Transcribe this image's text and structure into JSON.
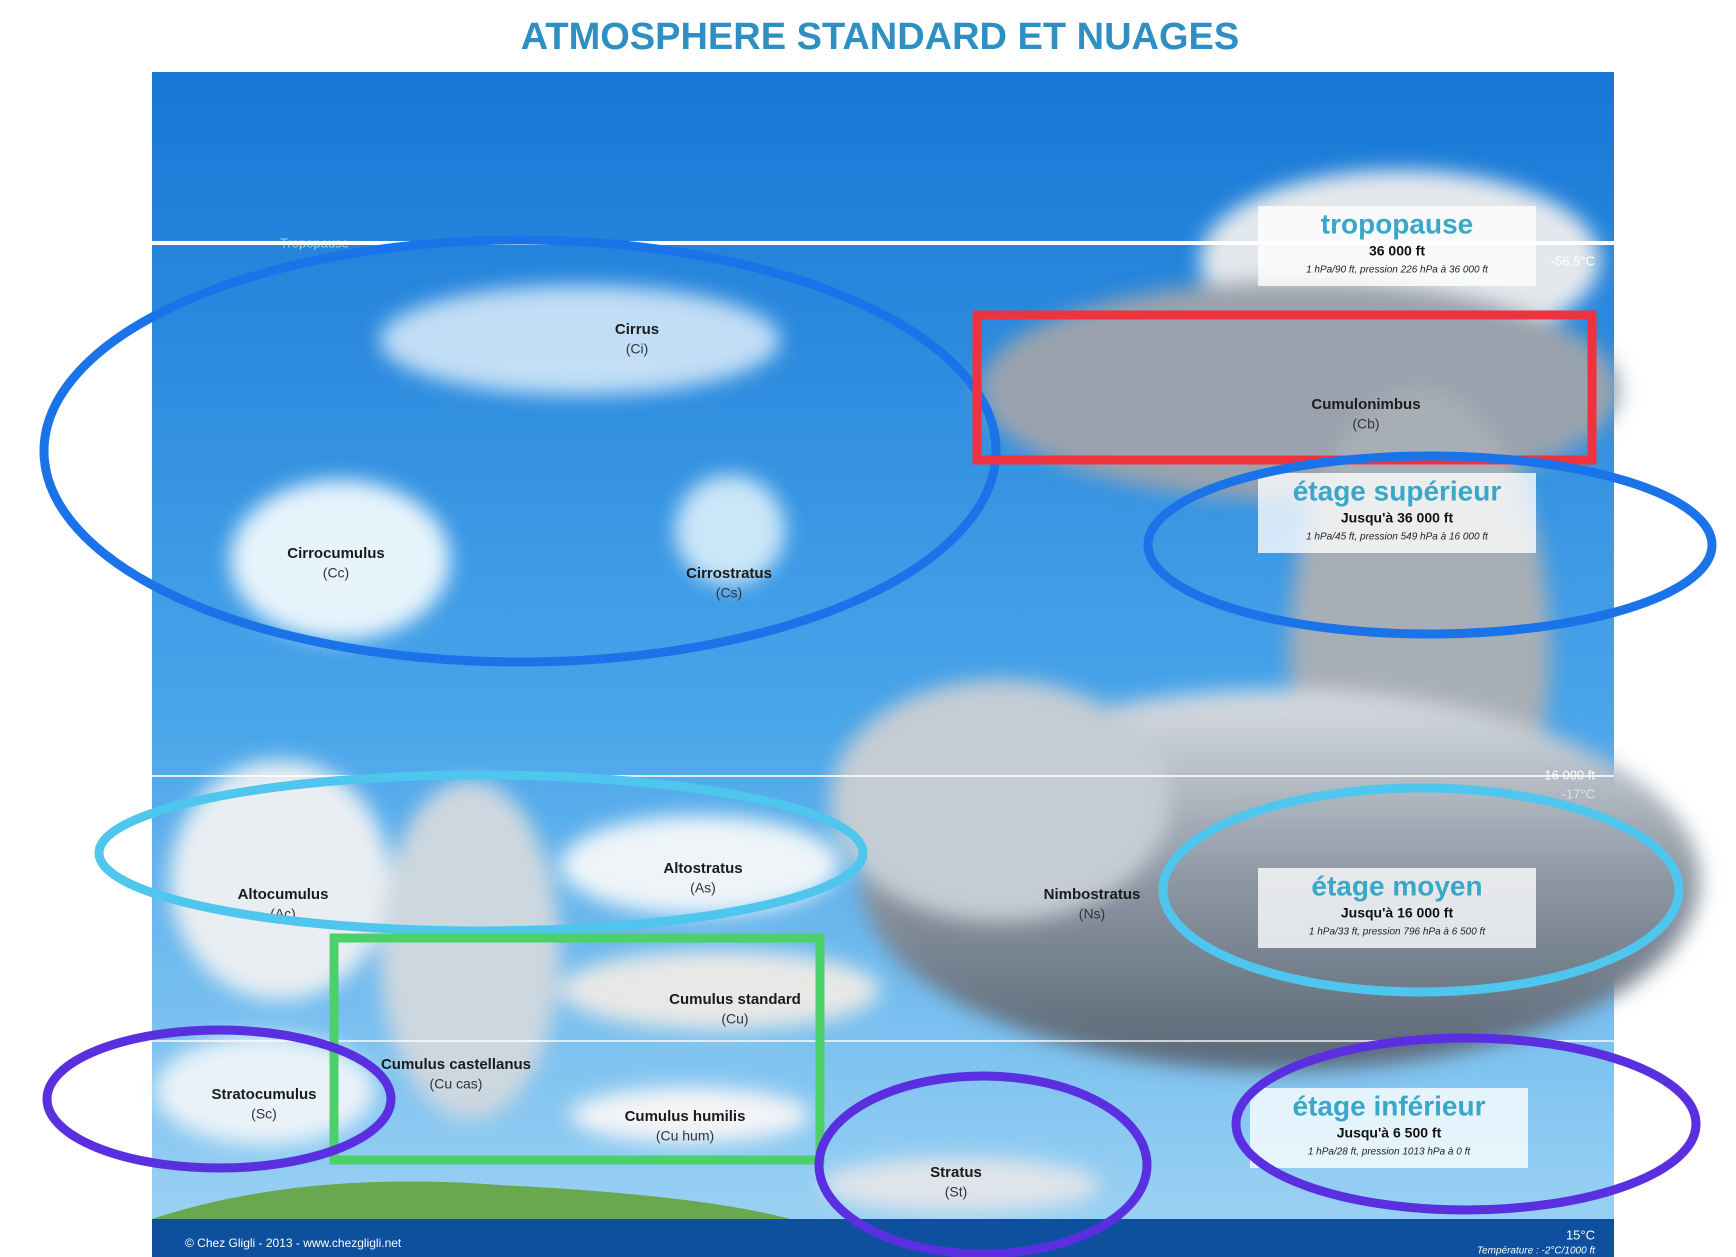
{
  "title": "ATMOSPHERE STANDARD ET NUAGES",
  "scale": {
    "tropopause": "Tropopause",
    "temp_top": "-56,5°C",
    "alt_mid": "16 000 ft",
    "temp_mid": "-17°C",
    "temp_ground": "15°C",
    "gradient": "Température : -2°C/1000 ft"
  },
  "clouds": [
    {
      "name": "Cirrus",
      "abbr": "(Ci)"
    },
    {
      "name": "Cirrocumulus",
      "abbr": "(Cc)"
    },
    {
      "name": "Cirrostratus",
      "abbr": "(Cs)"
    },
    {
      "name": "Cumulonimbus",
      "abbr": "(Cb)"
    },
    {
      "name": "Altocumulus",
      "abbr": "(Ac)"
    },
    {
      "name": "Altostratus",
      "abbr": "(As)"
    },
    {
      "name": "Nimbostratus",
      "abbr": "(Ns)"
    },
    {
      "name": "Cumulus standard",
      "abbr": "(Cu)"
    },
    {
      "name": "Cumulus castellanus",
      "abbr": "(Cu cas)"
    },
    {
      "name": "Cumulus humilis",
      "abbr": "(Cu hum)"
    },
    {
      "name": "Stratocumulus",
      "abbr": "(Sc)"
    },
    {
      "name": "Stratus",
      "abbr": "(St)"
    }
  ],
  "levels": [
    {
      "title": "tropopause",
      "altitude": "36 000 ft",
      "note": "1 hPa/90 ft, pression 226 hPa à 36 000 ft"
    },
    {
      "title": "étage supérieur",
      "altitude": "Jusqu'à 36 000 ft",
      "note": "1 hPa/45 ft, pression 549 hPa à 16 000 ft"
    },
    {
      "title": "étage moyen",
      "altitude": "Jusqu'à 16 000 ft",
      "note": "1 hPa/33 ft, pression 796 hPa à 6 500 ft"
    },
    {
      "title": "étage inférieur",
      "altitude": "Jusqu'à 6 500 ft",
      "note": "1 hPa/28 ft, pression 1013 hPa à 0 ft"
    }
  ],
  "footer": "© Chez Gligli - 2013 - www.chezgligli.net"
}
